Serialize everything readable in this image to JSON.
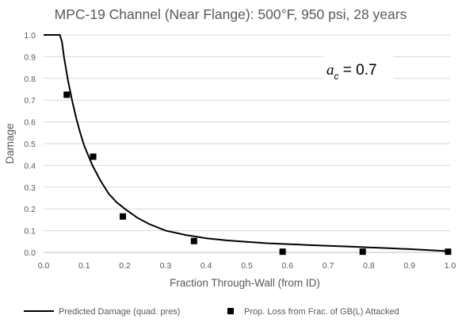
{
  "chart_data": {
    "type": "scatter",
    "title": "MPC-19 Channel (Near Flange): 500°F, 950 psi, 28 years",
    "xlabel": "Fraction Through-Wall (from ID)",
    "ylabel": "Damage",
    "xlim": [
      0,
      1
    ],
    "ylim": [
      0,
      1
    ],
    "x_ticks": [
      "0.0",
      "0.1",
      "0.2",
      "0.3",
      "0.4",
      "0.5",
      "0.6",
      "0.7",
      "0.8",
      "0.9",
      "1.0"
    ],
    "y_ticks": [
      "0.0",
      "0.1",
      "0.2",
      "0.3",
      "0.4",
      "0.5",
      "0.6",
      "0.7",
      "0.8",
      "0.9",
      "1.0"
    ],
    "grid": "horizontal",
    "legend_position": "bottom",
    "annotation": {
      "symbol": "a",
      "subscript": "c",
      "text": " = 0.7"
    },
    "series": [
      {
        "name": "Predicted Damage (quad. pres)",
        "kind": "line",
        "color": "#000000",
        "x": [
          0.0,
          0.04,
          0.045,
          0.05,
          0.06,
          0.07,
          0.08,
          0.09,
          0.1,
          0.12,
          0.14,
          0.16,
          0.18,
          0.2,
          0.23,
          0.26,
          0.3,
          0.35,
          0.4,
          0.45,
          0.5,
          0.55,
          0.6,
          0.65,
          0.7,
          0.75,
          0.8,
          0.85,
          0.9,
          0.95,
          1.0
        ],
        "y": [
          1.0,
          1.0,
          0.97,
          0.9,
          0.79,
          0.7,
          0.62,
          0.55,
          0.49,
          0.4,
          0.33,
          0.27,
          0.23,
          0.2,
          0.16,
          0.13,
          0.1,
          0.08,
          0.065,
          0.055,
          0.048,
          0.042,
          0.038,
          0.034,
          0.03,
          0.027,
          0.023,
          0.019,
          0.015,
          0.01,
          0.005
        ]
      },
      {
        "name": "Prop. Loss from Frac. of GB(L) Attacked",
        "kind": "scatter",
        "color": "#000000",
        "x": [
          0.057,
          0.122,
          0.195,
          0.37,
          0.588,
          0.785,
          0.995
        ],
        "y": [
          0.725,
          0.44,
          0.165,
          0.052,
          0.003,
          0.003,
          0.003
        ]
      }
    ]
  }
}
